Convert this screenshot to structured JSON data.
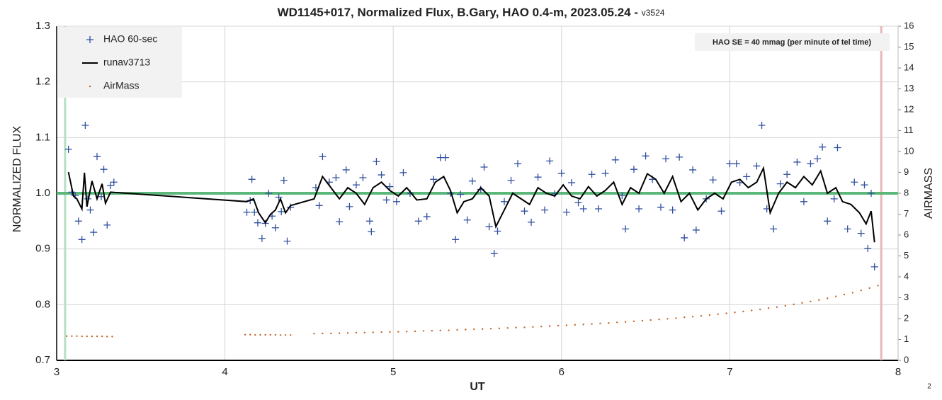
{
  "chart_data": {
    "type": "scatter",
    "title": "WD1145+017, Normalized Flux, B.Gary, HAO 0.4-m, 2023.05.24 - ",
    "version": "v3524",
    "xlabel": "UT",
    "ylabel": "NORMALIZED FLUX",
    "y2label": "AIRMASS",
    "annotation": "HAO SE =  40 mmag (per minute of tel time)",
    "footer": "2",
    "legend": "upper left",
    "grid": true,
    "xlim": [
      3,
      8
    ],
    "xticks": [
      3,
      4,
      5,
      6,
      7,
      8
    ],
    "ylim": [
      0.7,
      1.3
    ],
    "yticks": [
      0.7,
      0.8,
      0.9,
      {
        "value": 1,
        "label": "1.0"
      },
      1.1,
      1.2,
      1.3
    ],
    "y2lim": [
      0,
      16
    ],
    "y2ticks": [
      0,
      1,
      2,
      3,
      4,
      5,
      6,
      7,
      8,
      9,
      10,
      11,
      12,
      13,
      14,
      15,
      16
    ],
    "hlines": [
      {
        "value": 1,
        "color": "#5cb87a"
      }
    ],
    "vlines": [
      {
        "value": 3.05,
        "color": "#b5e0c3"
      },
      {
        "value": 7.9,
        "color": "#e8b8b8"
      }
    ],
    "series": [
      {
        "name": "HAO 60-sec",
        "color": "#2f4f9f",
        "marker": "plus",
        "x": [
          3.07,
          3.09,
          3.11,
          3.13,
          3.15,
          3.17,
          3.185,
          3.2,
          3.22,
          3.24,
          3.265,
          3.28,
          3.3,
          3.32,
          3.34,
          4.13,
          4.15,
          4.16,
          4.175,
          4.195,
          4.22,
          4.24,
          4.26,
          4.28,
          4.3,
          4.32,
          4.335,
          4.35,
          4.37,
          4.39,
          4.54,
          4.56,
          4.58,
          4.62,
          4.66,
          4.68,
          4.72,
          4.74,
          4.78,
          4.82,
          4.86,
          4.87,
          4.9,
          4.93,
          4.96,
          4.98,
          5.02,
          5.06,
          5.1,
          5.15,
          5.2,
          5.24,
          5.28,
          5.31,
          5.34,
          5.37,
          5.4,
          5.44,
          5.47,
          5.52,
          5.54,
          5.57,
          5.6,
          5.62,
          5.66,
          5.7,
          5.74,
          5.78,
          5.82,
          5.86,
          5.9,
          5.93,
          5.96,
          6.0,
          6.03,
          6.06,
          6.1,
          6.13,
          6.18,
          6.22,
          6.26,
          6.32,
          6.36,
          6.38,
          6.43,
          6.46,
          6.5,
          6.54,
          6.59,
          6.62,
          6.66,
          6.7,
          6.73,
          6.78,
          6.8,
          6.86,
          6.9,
          6.95,
          7.0,
          7.04,
          7.06,
          7.1,
          7.16,
          7.19,
          7.22,
          7.26,
          7.3,
          7.34,
          7.4,
          7.44,
          7.48,
          7.52,
          7.55,
          7.58,
          7.62,
          7.64,
          7.7,
          7.74,
          7.78,
          7.8,
          7.82,
          7.84,
          7.86
        ],
        "values": [
          1.079,
          1.002,
          0.996,
          0.95,
          0.917,
          1.122,
          0.99,
          0.97,
          0.93,
          1.066,
          0.994,
          1.043,
          0.943,
          1.014,
          1.02,
          0.966,
          0.987,
          1.025,
          0.966,
          0.947,
          0.919,
          0.946,
          1.0,
          0.959,
          0.938,
          0.993,
          0.967,
          1.023,
          0.914,
          0.975,
          1.01,
          0.978,
          1.066,
          1.02,
          1.028,
          0.949,
          1.042,
          0.976,
          1.015,
          1.028,
          0.95,
          0.931,
          1.057,
          1.033,
          0.988,
          1.012,
          0.985,
          1.037,
          1.0,
          0.95,
          0.958,
          1.025,
          1.064,
          1.064,
          1.0,
          0.917,
          0.998,
          0.952,
          1.022,
          1.007,
          1.047,
          0.94,
          0.892,
          0.932,
          0.985,
          1.023,
          1.053,
          0.968,
          0.948,
          1.029,
          0.97,
          1.058,
          0.999,
          1.036,
          0.966,
          1.019,
          0.983,
          0.972,
          1.034,
          0.972,
          1.036,
          1.06,
          0.996,
          0.936,
          1.043,
          0.972,
          1.067,
          1.025,
          0.975,
          1.062,
          0.97,
          1.065,
          0.92,
          1.042,
          0.934,
          0.99,
          1.024,
          0.968,
          1.053,
          1.053,
          1.019,
          1.03,
          1.049,
          1.122,
          0.972,
          0.936,
          1.017,
          1.034,
          1.056,
          0.985,
          1.053,
          1.062,
          1.083,
          0.95,
          0.99,
          1.082,
          0.936,
          1.02,
          0.928,
          1.015,
          0.901,
          1.0,
          0.868
        ]
      },
      {
        "name": "runav3713",
        "color": "#000000",
        "marker": "line",
        "x": [
          3.07,
          3.1,
          3.12,
          3.15,
          3.165,
          3.18,
          3.21,
          3.24,
          3.27,
          3.29,
          3.32,
          4.13,
          4.17,
          4.2,
          4.24,
          4.27,
          4.3,
          4.33,
          4.36,
          4.39,
          4.53,
          4.58,
          4.63,
          4.68,
          4.73,
          4.78,
          4.83,
          4.88,
          4.93,
          4.98,
          5.03,
          5.08,
          5.14,
          5.2,
          5.25,
          5.3,
          5.34,
          5.38,
          5.42,
          5.47,
          5.52,
          5.57,
          5.61,
          5.66,
          5.71,
          5.76,
          5.81,
          5.86,
          5.91,
          5.96,
          6.01,
          6.06,
          6.11,
          6.16,
          6.21,
          6.26,
          6.31,
          6.36,
          6.41,
          6.46,
          6.51,
          6.56,
          6.61,
          6.66,
          6.71,
          6.76,
          6.81,
          6.86,
          6.91,
          6.96,
          7.01,
          7.06,
          7.11,
          7.16,
          7.2,
          7.24,
          7.29,
          7.34,
          7.39,
          7.44,
          7.49,
          7.54,
          7.58,
          7.63,
          7.67,
          7.72,
          7.77,
          7.81,
          7.84,
          7.86
        ],
        "values": [
          1.038,
          0.995,
          0.99,
          0.972,
          1.037,
          0.976,
          1.022,
          0.99,
          1.017,
          0.982,
          1.002,
          0.985,
          0.99,
          0.965,
          0.947,
          0.962,
          0.97,
          0.99,
          0.965,
          0.978,
          0.99,
          1.03,
          1.01,
          0.99,
          1.01,
          1.0,
          0.98,
          1.01,
          1.02,
          1.005,
          0.995,
          1.01,
          0.988,
          0.99,
          1.02,
          1.03,
          1.005,
          0.965,
          0.985,
          0.99,
          1.01,
          0.995,
          0.94,
          0.97,
          1.0,
          0.99,
          0.98,
          1.01,
          1.0,
          0.995,
          1.015,
          0.995,
          0.99,
          1.012,
          0.995,
          1.005,
          1.02,
          0.98,
          1.01,
          1.0,
          1.035,
          1.025,
          1.0,
          1.03,
          0.985,
          1.0,
          0.97,
          0.99,
          1.0,
          0.99,
          1.02,
          1.025,
          1.01,
          1.02,
          1.045,
          0.965,
          1.0,
          1.02,
          1.01,
          1.03,
          1.015,
          1.04,
          1.0,
          1.01,
          0.985,
          0.98,
          0.965,
          0.945,
          0.968,
          0.912
        ]
      },
      {
        "name": "AirMass",
        "color": "#c0652a",
        "marker": "dot",
        "axis": "y2",
        "x": [
          3.06,
          3.09,
          3.12,
          3.15,
          3.18,
          3.21,
          3.24,
          3.27,
          3.3,
          3.33,
          4.12,
          4.15,
          4.18,
          4.21,
          4.24,
          4.27,
          4.3,
          4.33,
          4.36,
          4.39,
          4.53,
          4.58,
          4.63,
          4.68,
          4.73,
          4.78,
          4.83,
          4.88,
          4.93,
          4.98,
          5.03,
          5.08,
          5.13,
          5.18,
          5.23,
          5.28,
          5.33,
          5.38,
          5.43,
          5.48,
          5.53,
          5.58,
          5.63,
          5.68,
          5.73,
          5.78,
          5.83,
          5.88,
          5.93,
          5.98,
          6.03,
          6.08,
          6.13,
          6.18,
          6.23,
          6.28,
          6.33,
          6.38,
          6.43,
          6.48,
          6.53,
          6.58,
          6.63,
          6.68,
          6.73,
          6.78,
          6.83,
          6.88,
          6.93,
          6.98,
          7.03,
          7.08,
          7.13,
          7.18,
          7.23,
          7.28,
          7.33,
          7.38,
          7.43,
          7.48,
          7.53,
          7.58,
          7.63,
          7.68,
          7.73,
          7.78,
          7.83,
          7.88
        ],
        "values": [
          1.16,
          1.16,
          1.16,
          1.15,
          1.15,
          1.15,
          1.15,
          1.15,
          1.14,
          1.14,
          1.23,
          1.23,
          1.22,
          1.22,
          1.22,
          1.22,
          1.22,
          1.21,
          1.21,
          1.21,
          1.28,
          1.29,
          1.29,
          1.3,
          1.31,
          1.32,
          1.33,
          1.34,
          1.35,
          1.36,
          1.37,
          1.38,
          1.39,
          1.41,
          1.42,
          1.43,
          1.44,
          1.46,
          1.47,
          1.49,
          1.5,
          1.52,
          1.53,
          1.55,
          1.57,
          1.58,
          1.6,
          1.62,
          1.64,
          1.66,
          1.68,
          1.7,
          1.72,
          1.74,
          1.77,
          1.79,
          1.82,
          1.84,
          1.87,
          1.9,
          1.93,
          1.96,
          1.99,
          2.02,
          2.06,
          2.09,
          2.13,
          2.17,
          2.21,
          2.25,
          2.3,
          2.34,
          2.39,
          2.44,
          2.5,
          2.55,
          2.61,
          2.68,
          2.75,
          2.82,
          2.89,
          2.97,
          3.06,
          3.15,
          3.24,
          3.35,
          3.46,
          3.58
        ]
      }
    ]
  }
}
